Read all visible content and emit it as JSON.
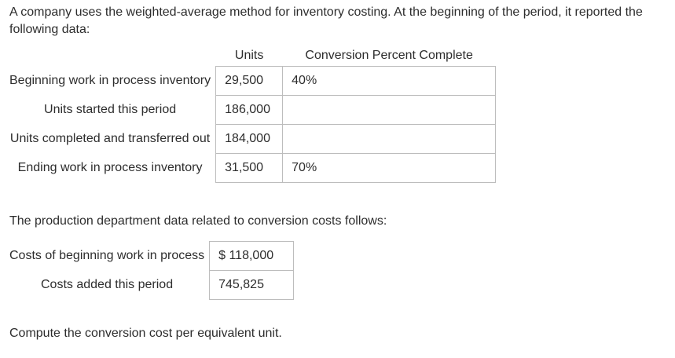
{
  "intro": "A company uses the weighted-average method for inventory costing. At the beginning of the period, it reported the following data:",
  "units_table": {
    "headers": [
      "Units",
      "Conversion Percent Complete"
    ],
    "rows": [
      {
        "label": "Beginning work in process inventory",
        "units": "29,500",
        "conversion": "40%"
      },
      {
        "label": "Units started this period",
        "units": "186,000",
        "conversion": ""
      },
      {
        "label": "Units completed and transferred out",
        "units": "184,000",
        "conversion": ""
      },
      {
        "label": "Ending work in process inventory",
        "units": "31,500",
        "conversion": "70%"
      }
    ]
  },
  "costs_intro": "The production department data related to conversion costs follows:",
  "costs_table": {
    "rows": [
      {
        "label": "Costs of beginning work in process",
        "value": "$ 118,000"
      },
      {
        "label": "Costs added this period",
        "value": "745,825"
      }
    ]
  },
  "question": "Compute the conversion cost per equivalent unit."
}
